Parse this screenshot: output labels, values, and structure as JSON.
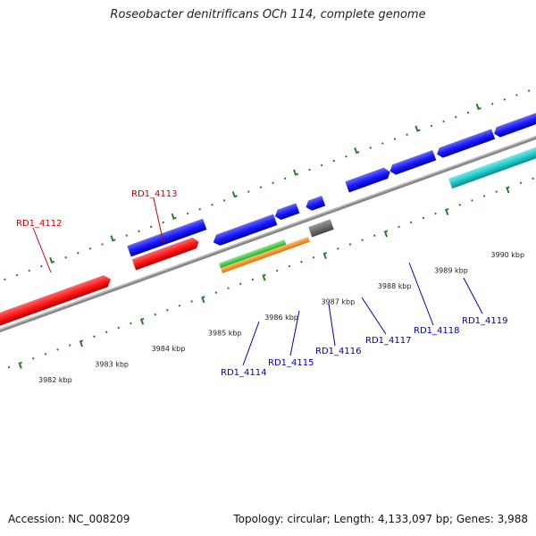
{
  "title": "Roseobacter denitrificans OCh 114, complete genome",
  "footer": {
    "accession": "Accession: NC_008209",
    "summary": "Topology: circular; Length: 4,133,097 bp; Genes: 3,988"
  },
  "colors": {
    "red_gene": "#ff1a1a",
    "blue_gene": "#1a1aff",
    "cyan_gene": "#22cccc",
    "green_gene": "#33cc33",
    "orange_gene": "#ff9922",
    "gray_gene": "#666666",
    "backbone": "#888888",
    "tick": "#2a7a2a",
    "label_red": "#cc0000",
    "label_blue": "#0000aa"
  },
  "ticks": [
    {
      "label": "3982 kbp",
      "kbp": 3982
    },
    {
      "label": "3983 kbp",
      "kbp": 3983
    },
    {
      "label": "3984 kbp",
      "kbp": 3984
    },
    {
      "label": "3985 kbp",
      "kbp": 3985
    },
    {
      "label": "3986 kbp",
      "kbp": 3986
    },
    {
      "label": "3987 kbp",
      "kbp": 3987
    },
    {
      "label": "3988 kbp",
      "kbp": 3988
    },
    {
      "label": "3989 kbp",
      "kbp": 3989
    },
    {
      "label": "3990 kbp",
      "kbp": 3990
    }
  ],
  "genes": [
    {
      "id": "RD1_4112",
      "label": "RD1_4112"
    },
    {
      "id": "RD1_4113",
      "label": "RD1_4113"
    },
    {
      "id": "RD1_4114",
      "label": "RD1_4114"
    },
    {
      "id": "RD1_4115",
      "label": "RD1_4115"
    },
    {
      "id": "RD1_4116",
      "label": "RD1_4116"
    },
    {
      "id": "RD1_4117",
      "label": "RD1_4117"
    },
    {
      "id": "RD1_4118",
      "label": "RD1_4118"
    },
    {
      "id": "RD1_4119",
      "label": "RD1_4119"
    }
  ]
}
